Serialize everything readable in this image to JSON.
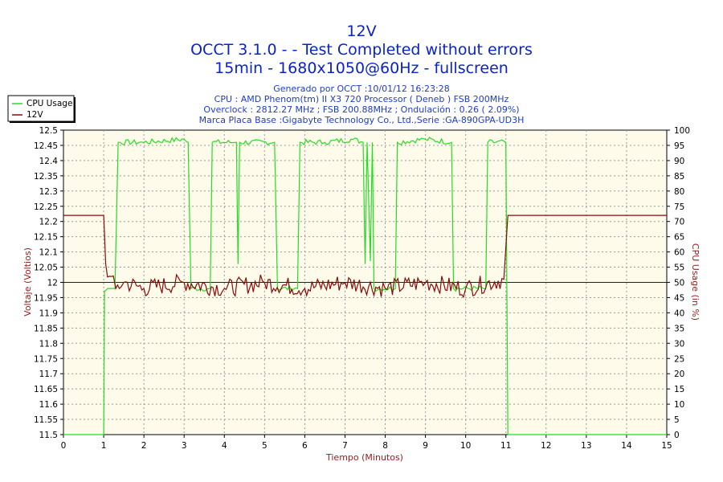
{
  "chart_data": {
    "type": "line",
    "title": "12V",
    "subtitle_lines": [
      "OCCT 3.1.0 -  - Test Completed without errors",
      "15min - 1680x1050@60Hz - fullscreen"
    ],
    "info_lines": [
      "Generado por OCCT :10/01/12 16:23:28",
      "CPU : AMD Phenom(tm) II X3 720 Processor ( Deneb ) FSB 200MHz",
      "Overclock : 2812.27 MHz ; FSB 200.88MHz ; Ondulación : 0.26 ( 2.09%)",
      "Marca Placa Base :Gigabyte Technology Co., Ltd.,Serie :GA-890GPA-UD3H"
    ],
    "xlabel": "Tiempo (Minutos)",
    "ylabel_left": "Voltaje (Voltios)",
    "ylabel_right": "CPU Usage (in %)",
    "xlim": [
      0,
      15
    ],
    "ylim_left": [
      11.5,
      12.5
    ],
    "ylim_right": [
      0,
      100
    ],
    "x_ticks": [
      "0",
      "1",
      "2",
      "3",
      "4",
      "5",
      "6",
      "7",
      "8",
      "9",
      "10",
      "11",
      "12",
      "13",
      "14",
      "15"
    ],
    "y_left_ticks": [
      "11.5",
      "11.55",
      "11.6",
      "11.65",
      "11.7",
      "11.75",
      "11.8",
      "11.85",
      "11.9",
      "11.95",
      "12",
      "12.05",
      "12.1",
      "12.15",
      "12.2",
      "12.25",
      "12.3",
      "12.35",
      "12.4",
      "12.45",
      "12.5"
    ],
    "y_right_ticks": [
      "0",
      "5",
      "10",
      "15",
      "20",
      "25",
      "30",
      "35",
      "40",
      "45",
      "50",
      "55",
      "60",
      "65",
      "70",
      "75",
      "80",
      "85",
      "90",
      "95",
      "100"
    ],
    "grid": true,
    "legend_position": "top-left",
    "reference_line": {
      "axis": "left",
      "value": 12.0,
      "color": "#1010a0"
    },
    "series": [
      {
        "name": "CPU Usage",
        "axis": "right",
        "color": "#22dd22",
        "points": [
          [
            0,
            0
          ],
          [
            1,
            0
          ],
          [
            1.02,
            47
          ],
          [
            1.1,
            48
          ],
          [
            1.2,
            48
          ],
          [
            1.28,
            48
          ],
          [
            1.36,
            96
          ],
          [
            2,
            96
          ],
          [
            3,
            97
          ],
          [
            3.1,
            96
          ],
          [
            3.17,
            48
          ],
          [
            3.65,
            48
          ],
          [
            3.7,
            96
          ],
          [
            4.3,
            96
          ],
          [
            4.34,
            56
          ],
          [
            4.38,
            96
          ],
          [
            5.25,
            96
          ],
          [
            5.32,
            48
          ],
          [
            5.82,
            48
          ],
          [
            5.88,
            96
          ],
          [
            6.5,
            96
          ],
          [
            7.2,
            97
          ],
          [
            7.45,
            96
          ],
          [
            7.5,
            56
          ],
          [
            7.55,
            96
          ],
          [
            7.63,
            57
          ],
          [
            7.68,
            96
          ],
          [
            7.72,
            48
          ],
          [
            8.25,
            48
          ],
          [
            8.3,
            96
          ],
          [
            9,
            97
          ],
          [
            9.65,
            96
          ],
          [
            9.7,
            48
          ],
          [
            10.5,
            48
          ],
          [
            10.55,
            96
          ],
          [
            11.0,
            96
          ],
          [
            11.05,
            0
          ],
          [
            15,
            0
          ]
        ]
      },
      {
        "name": "12V",
        "axis": "left",
        "color": "#8b0a0a",
        "points": [
          [
            0,
            12.22
          ],
          [
            1,
            12.22
          ],
          [
            1.05,
            12.06
          ],
          [
            1.15,
            12.02
          ],
          [
            1.3,
            11.98
          ],
          [
            1.5,
            12.0
          ],
          [
            2,
            11.98
          ],
          [
            3,
            12.0
          ],
          [
            4,
            11.98
          ],
          [
            5,
            12.0
          ],
          [
            6,
            11.98
          ],
          [
            7,
            12.0
          ],
          [
            8,
            11.98
          ],
          [
            9,
            12.0
          ],
          [
            10,
            11.98
          ],
          [
            10.95,
            12.01
          ],
          [
            11.05,
            12.22
          ],
          [
            15,
            12.22
          ]
        ]
      }
    ]
  },
  "legend": [
    {
      "label": "CPU Usage",
      "color": "#22dd22"
    },
    {
      "label": "12V",
      "color": "#8b0a0a"
    }
  ]
}
